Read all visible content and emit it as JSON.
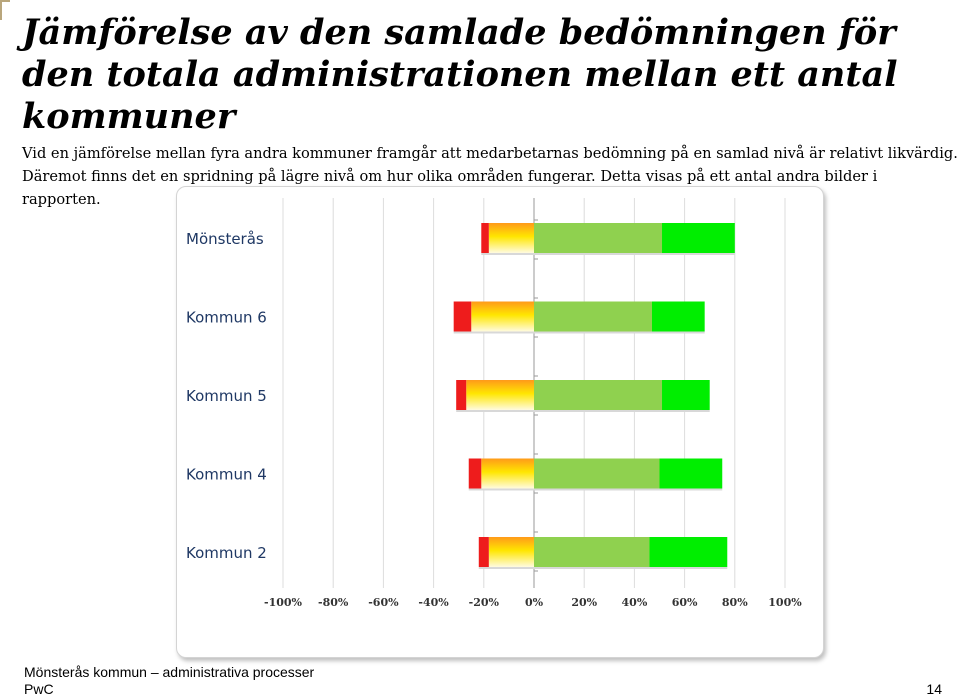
{
  "page": {
    "title": "Jämförelse av den samlade bedömningen för den totala administrationen mellan ett antal kommuner",
    "intro": "Vid en jämförelse mellan fyra andra kommuner framgår att medarbetarnas bedömning på en samlad nivå är relativt likvärdig. Däremot finns det en spridning på lägre nivå om hur olika områden fungerar. Detta visas på ett antal andra bilder i rapporten."
  },
  "chart_data": {
    "type": "bar",
    "orientation": "horizontal",
    "stacked": "diverging",
    "categories": [
      "Mönsterås",
      "Kommun 6",
      "Kommun 5",
      "Kommun 4",
      "Kommun 2"
    ],
    "series": [
      {
        "color": "#ee1c1c",
        "values": [
          -3,
          -7,
          -4,
          -5,
          -4
        ]
      },
      {
        "color": "#ffd21a",
        "gradient": [
          "#ff9a1a",
          "#ffe600",
          "#fffbe0"
        ],
        "values": [
          -18,
          -25,
          -27,
          -21,
          -18
        ]
      },
      {
        "color": "#8fd14f",
        "values": [
          51,
          47,
          51,
          50,
          46
        ]
      },
      {
        "color": "#00ee00",
        "values": [
          29,
          21,
          19,
          25,
          31
        ]
      }
    ],
    "x_ticks": [
      "-100%",
      "-80%",
      "-60%",
      "-40%",
      "-20%",
      "0%",
      "20%",
      "40%",
      "60%",
      "80%",
      "100%"
    ],
    "xlim": [
      -100,
      100
    ],
    "grid": "vertical",
    "legend": "none"
  },
  "footer": {
    "report": "Mönsterås kommun – administrativa processer",
    "company": "PwC",
    "page_number": "14"
  }
}
